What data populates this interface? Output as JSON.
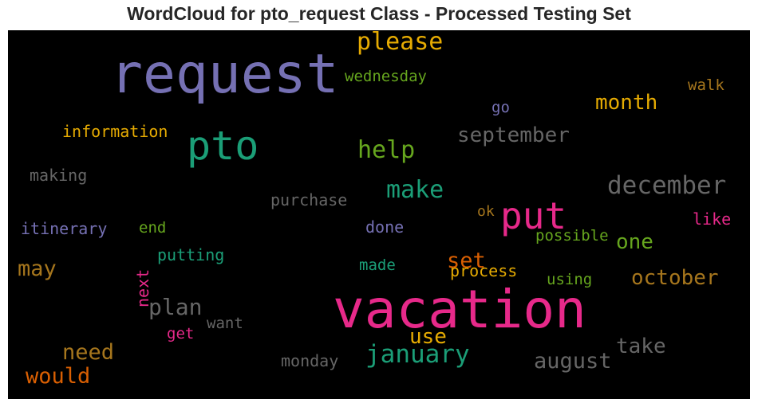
{
  "title": "WordCloud for pto_request Class - Processed Testing Set",
  "colors": {
    "background": "#000000",
    "title_text": "#262626"
  },
  "chart_data": {
    "type": "wordcloud",
    "title": "WordCloud for pto_request Class - Processed Testing Set",
    "words": [
      {
        "text": "request",
        "color": "#7570b3"
      },
      {
        "text": "vacation",
        "color": "#e7298a"
      },
      {
        "text": "pto",
        "color": "#1b9e77"
      },
      {
        "text": "put",
        "color": "#e7298a"
      },
      {
        "text": "please",
        "color": "#e6ab02"
      },
      {
        "text": "january",
        "color": "#1b9e77"
      },
      {
        "text": "december",
        "color": "#666666"
      },
      {
        "text": "help",
        "color": "#66a61e"
      },
      {
        "text": "make",
        "color": "#1b9e77"
      },
      {
        "text": "september",
        "color": "#666666"
      },
      {
        "text": "month",
        "color": "#e6ab02"
      },
      {
        "text": "august",
        "color": "#666666"
      },
      {
        "text": "october",
        "color": "#a6761d"
      },
      {
        "text": "would",
        "color": "#d95f02"
      },
      {
        "text": "need",
        "color": "#a6761d"
      },
      {
        "text": "plan",
        "color": "#666666"
      },
      {
        "text": "take",
        "color": "#666666"
      },
      {
        "text": "may",
        "color": "#a6761d"
      },
      {
        "text": "set",
        "color": "#d95f02"
      },
      {
        "text": "use",
        "color": "#e6ab02"
      },
      {
        "text": "one",
        "color": "#66a61e"
      },
      {
        "text": "wednesday",
        "color": "#66a61e"
      },
      {
        "text": "information",
        "color": "#e6ab02"
      },
      {
        "text": "process",
        "color": "#e6ab02"
      },
      {
        "text": "purchase",
        "color": "#666666"
      },
      {
        "text": "itinerary",
        "color": "#7570b3"
      },
      {
        "text": "making",
        "color": "#666666"
      },
      {
        "text": "putting",
        "color": "#1b9e77"
      },
      {
        "text": "possible",
        "color": "#66a61e"
      },
      {
        "text": "using",
        "color": "#66a61e"
      },
      {
        "text": "monday",
        "color": "#666666"
      },
      {
        "text": "walk",
        "color": "#a6761d"
      },
      {
        "text": "like",
        "color": "#e7298a"
      },
      {
        "text": "done",
        "color": "#7570b3"
      },
      {
        "text": "made",
        "color": "#1b9e77"
      },
      {
        "text": "end",
        "color": "#66a61e"
      },
      {
        "text": "want",
        "color": "#666666"
      },
      {
        "text": "get",
        "color": "#e7298a"
      },
      {
        "text": "go",
        "color": "#7570b3"
      },
      {
        "text": "ok",
        "color": "#a6761d"
      },
      {
        "text": "next",
        "color": "#e7298a"
      }
    ]
  }
}
